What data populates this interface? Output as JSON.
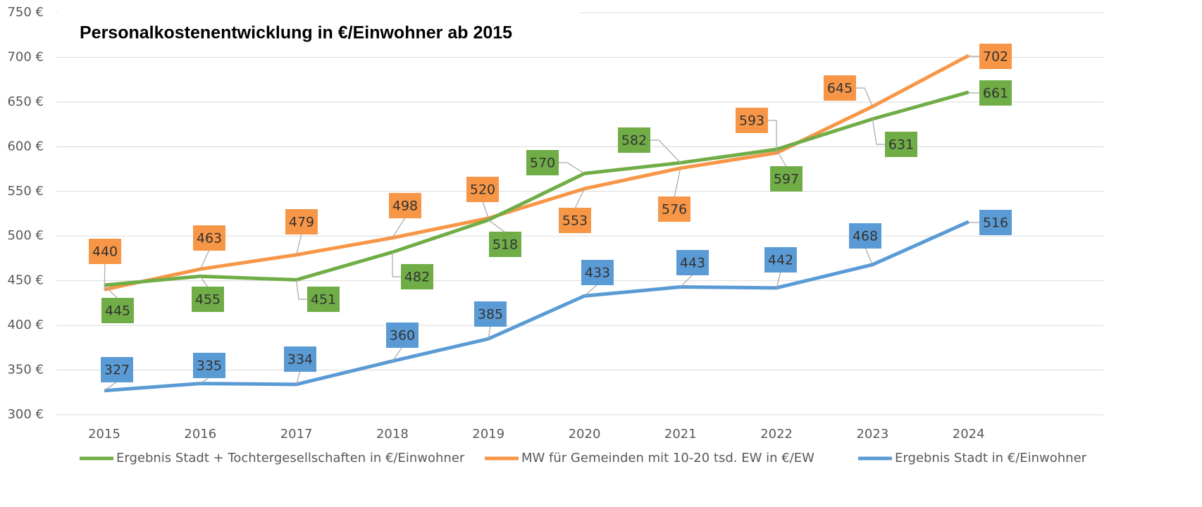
{
  "chart_data": {
    "type": "line",
    "title": "Personalkostenentwicklung in €/Einwohner ab 2015",
    "categories": [
      "2015",
      "2016",
      "2017",
      "2018",
      "2019",
      "2020",
      "2021",
      "2022",
      "2023",
      "2024"
    ],
    "series": [
      {
        "name": "Ergebnis Stadt + Tochtergesellschaften in €/Einwohner",
        "color": "#70ad47",
        "values": [
          445,
          455,
          451,
          482,
          518,
          570,
          582,
          597,
          631,
          661
        ]
      },
      {
        "name": "MW für Gemeinden mit 10-20 tsd. EW in €/EW",
        "color": "#f79646",
        "values": [
          440,
          463,
          479,
          498,
          520,
          553,
          576,
          593,
          645,
          702
        ]
      },
      {
        "name": "Ergebnis Stadt in €/Einwohner",
        "color": "#5b9bd5",
        "values": [
          327,
          335,
          334,
          360,
          385,
          433,
          443,
          442,
          468,
          516
        ]
      }
    ],
    "ylim": [
      300,
      750
    ],
    "yticks": [
      {
        "value": 300,
        "label": "300 €"
      },
      {
        "value": 350,
        "label": "350 €"
      },
      {
        "value": 400,
        "label": "400 €"
      },
      {
        "value": 450,
        "label": "450 €"
      },
      {
        "value": 500,
        "label": "500 €"
      },
      {
        "value": 550,
        "label": "550 €"
      },
      {
        "value": 600,
        "label": "600 €"
      },
      {
        "value": 650,
        "label": "650 €"
      },
      {
        "value": 700,
        "label": "700 €"
      },
      {
        "value": 750,
        "label": "750 €"
      }
    ],
    "grid": true,
    "legend": "bottom"
  }
}
